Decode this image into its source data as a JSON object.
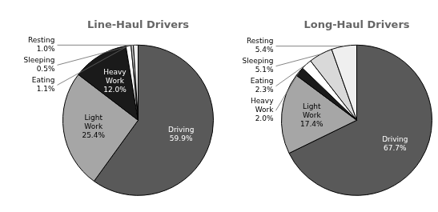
{
  "chart_data": [
    {
      "type": "pie",
      "title": "Line-Haul Drivers",
      "categories": [
        "Driving",
        "Light Work",
        "Heavy Work",
        "Eating",
        "Sleeping",
        "Resting"
      ],
      "values": [
        59.9,
        25.4,
        12.0,
        1.1,
        0.5,
        1.0
      ],
      "value_labels": [
        "59.9%",
        "25.4%",
        "12.0%",
        "1.1%",
        "0.5%",
        "1.0%"
      ],
      "colors": [
        "#595959",
        "#a6a6a6",
        "#1a1a1a",
        "#ffffff",
        "#d9d9d9",
        "#efefef"
      ],
      "data_labels": true
    },
    {
      "type": "pie",
      "title": "Long-Haul Drivers",
      "categories": [
        "Driving",
        "Light Work",
        "Heavy Work",
        "Eating",
        "Sleeping",
        "Resting"
      ],
      "values": [
        67.7,
        17.4,
        2.0,
        2.3,
        5.1,
        5.4
      ],
      "value_labels": [
        "67.7%",
        "17.4%",
        "2.0%",
        "2.3%",
        "5.1%",
        "5.4%"
      ],
      "colors": [
        "#595959",
        "#a6a6a6",
        "#1a1a1a",
        "#ffffff",
        "#d9d9d9",
        "#efefef"
      ],
      "data_labels": true
    }
  ]
}
